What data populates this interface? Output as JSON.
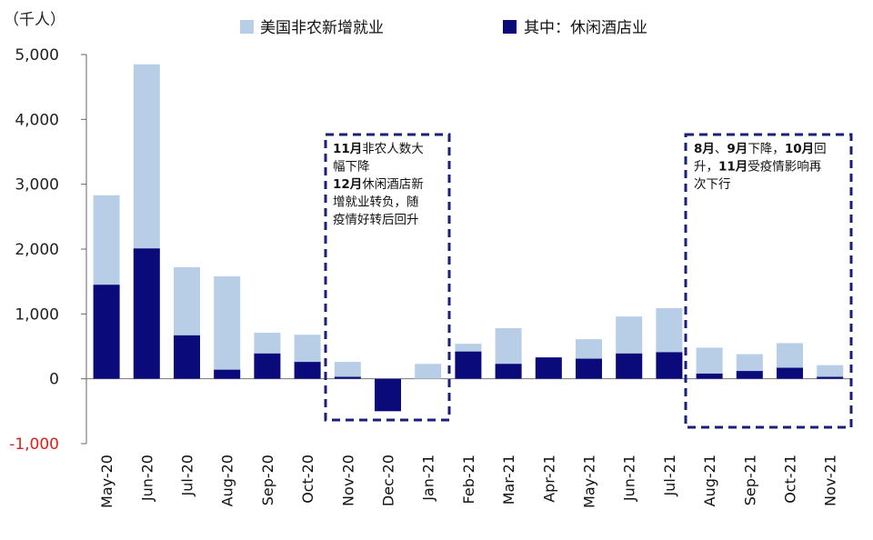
{
  "chart_data": {
    "type": "bar",
    "unit_label": "（千人）",
    "categories": [
      "May-20",
      "Jun-20",
      "Jul-20",
      "Aug-20",
      "Sep-20",
      "Oct-20",
      "Nov-20",
      "Dec-20",
      "Jan-21",
      "Feb-21",
      "Mar-21",
      "Apr-21",
      "May-21",
      "Jun-21",
      "Jul-21",
      "Aug-21",
      "Sep-21",
      "Oct-21",
      "Nov-21"
    ],
    "ylim": [
      -1000,
      5000
    ],
    "yticks": [
      {
        "value": -1000,
        "label": "-1,000"
      },
      {
        "value": 0,
        "label": "0"
      },
      {
        "value": 1000,
        "label": "1,000"
      },
      {
        "value": 2000,
        "label": "2,000"
      },
      {
        "value": 3000,
        "label": "3,000"
      },
      {
        "value": 4000,
        "label": "4,000"
      },
      {
        "value": 5000,
        "label": "5,000"
      }
    ],
    "legend_position": "top",
    "series": [
      {
        "name": "美国非农新增就业",
        "color": "#b8cde6",
        "values": [
          2830,
          4850,
          1720,
          1580,
          710,
          680,
          260,
          -300,
          230,
          540,
          780,
          290,
          610,
          960,
          1090,
          480,
          380,
          550,
          210
        ]
      },
      {
        "name": "其中：休闲酒店业",
        "color": "#0a0a7a",
        "values": [
          1450,
          2010,
          670,
          140,
          390,
          260,
          30,
          -500,
          0,
          420,
          230,
          330,
          310,
          390,
          410,
          80,
          120,
          170,
          30
        ]
      }
    ],
    "annotations": [
      {
        "lines": [
          [
            {
              "text": "11月",
              "bold": true
            },
            {
              "text": "非农人数大"
            }
          ],
          [
            {
              "text": "幅下降"
            }
          ],
          [
            {
              "text": "12月",
              "bold": true
            },
            {
              "text": "休闲酒店新"
            }
          ],
          [
            {
              "text": "增就业转负，随"
            }
          ],
          [
            {
              "text": "疫情好转后回升"
            }
          ]
        ]
      },
      {
        "lines": [
          [
            {
              "text": "8月",
              "bold": true
            },
            {
              "text": "、"
            },
            {
              "text": "9月",
              "bold": true
            },
            {
              "text": "下降，"
            },
            {
              "text": "10月",
              "bold": true
            },
            {
              "text": "回"
            }
          ],
          [
            {
              "text": "升，"
            },
            {
              "text": "11月",
              "bold": true
            },
            {
              "text": "受疫情影响再"
            }
          ],
          [
            {
              "text": "次下行"
            }
          ]
        ]
      }
    ]
  }
}
